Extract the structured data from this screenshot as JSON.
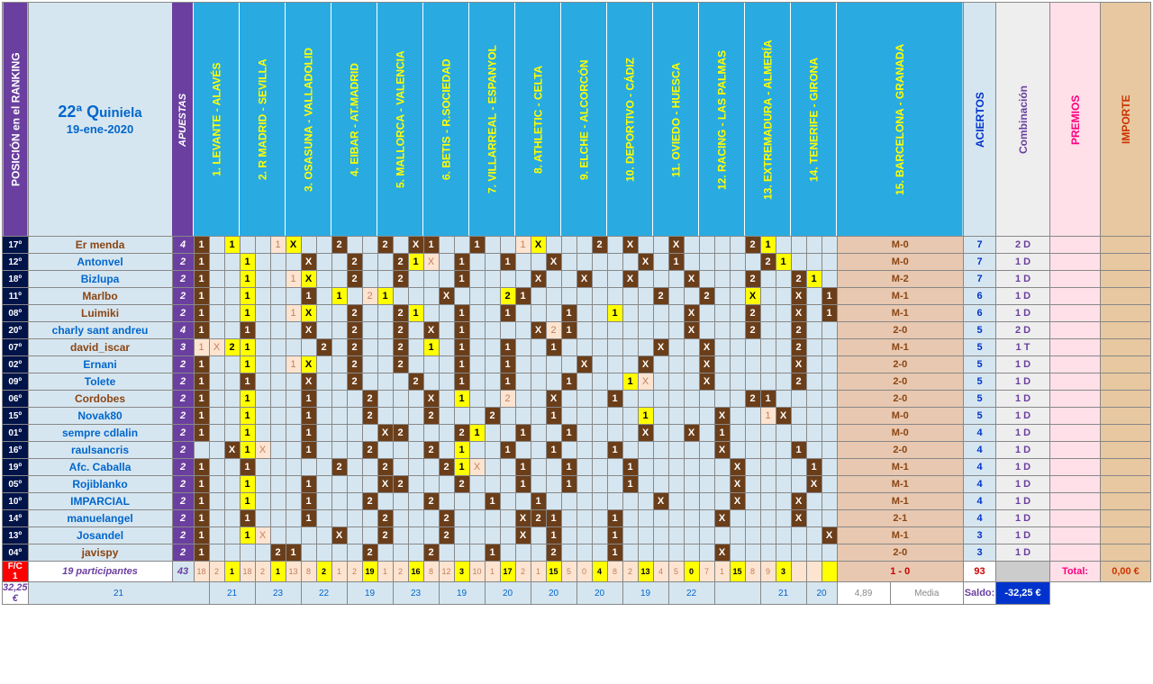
{
  "header": {
    "posicion": "POSICIÓN  en  el  RANKING",
    "title_main": "22ª Q",
    "title_rest": "uiniela",
    "date": "19-ene-2020",
    "apuestas": "APUESTAS",
    "matches": [
      "1.  LEVANTE - ALAVÉS",
      "2.  R MADRID - SEVILLA",
      "3.  OSASUNA - VALLADOLID",
      "4.  EIBAR - AT.MADRID",
      "5.  MALLORCA - VALENCIA",
      "6.  BETIS - R.SOCIEDAD",
      "7.  VILLARREAL - ESPANYOL",
      "8.  ATHLETIC - CELTA",
      "9.  ELCHE - ALCORCÓN",
      "10.  DEPORTIVO - CÁDIZ",
      "11.  OVIEDO - HUESCA",
      "12.  RACING - LAS PALMAS",
      "13.  EXTREMADURA - ALMERÍA",
      "14.  TENERIFE - GIRONA",
      "15.  BARCELONA - GRANADA"
    ],
    "aciertos": "ACIERTOS",
    "combinacion": "Combinación",
    "premios": "PREMIOS",
    "importe": "IMPORTE"
  },
  "rows": [
    {
      "pos": "17º",
      "name": "Er menda",
      "ncol": "brown",
      "ap": "4",
      "cells": [
        "b1",
        "",
        "y1",
        "",
        "",
        "p1",
        "yX",
        "",
        "",
        "b2",
        "",
        "",
        "b2",
        "",
        "bX",
        "b1",
        "",
        "",
        "b1",
        "",
        "",
        "p1",
        "yX",
        "",
        "",
        "",
        "b2",
        "",
        "bX",
        "",
        "",
        "bX",
        "",
        "",
        "",
        "",
        "b2",
        "y1",
        "",
        "",
        "",
        "",
        "bM-0"
      ],
      "ac": "7",
      "comb": "2 D"
    },
    {
      "pos": "12º",
      "name": "Antonvel",
      "ncol": "blue",
      "ap": "2",
      "cells": [
        "b1",
        "",
        "",
        "y1",
        "",
        "",
        "",
        "bX",
        "",
        "",
        "b2",
        "",
        "",
        "b2",
        "y1",
        "pX",
        "",
        "b1",
        "",
        "",
        "b1",
        "",
        "",
        "bX",
        "",
        "",
        "",
        "",
        "",
        "bX",
        "",
        "b1",
        "",
        "",
        "",
        "",
        "",
        "b2",
        "y1",
        "",
        "",
        "",
        "bM-0"
      ],
      "ac": "7",
      "comb": "1 D"
    },
    {
      "pos": "18º",
      "name": "Bizlupa",
      "ncol": "blue",
      "ap": "2",
      "cells": [
        "b1",
        "",
        "",
        "y1",
        "",
        "",
        "p1",
        "yX",
        "",
        "",
        "b2",
        "",
        "",
        "b2",
        "",
        "",
        "",
        "b1",
        "",
        "",
        "",
        "",
        "bX",
        "",
        "",
        "bX",
        "",
        "",
        "bX",
        "",
        "",
        "",
        "bX",
        "",
        "",
        "",
        "b2",
        "",
        "",
        "b2",
        "y1",
        "",
        "bM-2"
      ],
      "ac": "7",
      "comb": "1 D"
    },
    {
      "pos": "11º",
      "name": "Marlbo",
      "ncol": "brown",
      "ap": "2",
      "cells": [
        "b1",
        "",
        "",
        "y1",
        "",
        "",
        "",
        "b1",
        "",
        "y1",
        "",
        "p2",
        "y1",
        "",
        "",
        "",
        "bX",
        "",
        "",
        "",
        "y2",
        "b1",
        "",
        "",
        "",
        "",
        "",
        "",
        "",
        "",
        "b2",
        "",
        "",
        "b2",
        "",
        "",
        "yX",
        "",
        "",
        "bX",
        "",
        "b1",
        "",
        "",
        "",
        "bM-1"
      ],
      "ac": "6",
      "comb": "1 D"
    },
    {
      "pos": "08º",
      "name": "Luimiki",
      "ncol": "brown",
      "ap": "2",
      "cells": [
        "b1",
        "",
        "",
        "y1",
        "",
        "",
        "p1",
        "yX",
        "",
        "",
        "b2",
        "",
        "",
        "b2",
        "y1",
        "",
        "",
        "b1",
        "",
        "",
        "b1",
        "",
        "",
        "",
        "b1",
        "",
        "",
        "y1",
        "",
        "",
        "",
        "",
        "bX",
        "",
        "",
        "",
        "b2",
        "",
        "",
        "bX",
        "",
        "b1",
        "",
        "",
        "",
        "bM-1"
      ],
      "ac": "6",
      "comb": "1 D"
    },
    {
      "pos": "20º",
      "name": "charly sant andreu",
      "ncol": "blue",
      "ap": "4",
      "cells": [
        "b1",
        "",
        "",
        "b1",
        "",
        "",
        "",
        "bX",
        "",
        "",
        "b2",
        "",
        "",
        "b2",
        "",
        "bX",
        "",
        "b1",
        "",
        "",
        "",
        "",
        "bX",
        "p2",
        "b1",
        "",
        "",
        "",
        "",
        "",
        "",
        "",
        "bX",
        "",
        "",
        "",
        "b2",
        "",
        "",
        "b2",
        "",
        "",
        "bX",
        "b2",
        "b2-0"
      ],
      "ac": "5",
      "comb": "2 D"
    },
    {
      "pos": "07º",
      "name": "david_iscar",
      "ncol": "brown",
      "ap": "3",
      "cells": [
        "p1",
        "pX",
        "y2",
        "y1",
        "",
        "",
        "",
        "",
        "b2",
        "",
        "b2",
        "",
        "",
        "b2",
        "",
        "y1",
        "",
        "b1",
        "",
        "",
        "b1",
        "",
        "",
        "b1",
        "",
        "",
        "",
        "",
        "",
        "",
        "bX",
        "",
        "",
        "bX",
        "",
        "",
        "",
        "",
        "",
        "b2",
        "",
        "",
        "bX",
        "",
        "bM-1"
      ],
      "ac": "5",
      "comb": "1 T"
    },
    {
      "pos": "02º",
      "name": "Ernani",
      "ncol": "blue",
      "ap": "2",
      "cells": [
        "b1",
        "",
        "",
        "y1",
        "",
        "",
        "p1",
        "yX",
        "",
        "",
        "b2",
        "",
        "",
        "b2",
        "",
        "",
        "",
        "b1",
        "",
        "",
        "b1",
        "",
        "",
        "",
        "",
        "bX",
        "",
        "",
        "",
        "bX",
        "",
        "",
        "",
        "bX",
        "",
        "",
        "",
        "",
        "",
        "bX",
        "",
        "",
        "b2",
        "b2-0"
      ],
      "ac": "5",
      "comb": "1 D"
    },
    {
      "pos": "09º",
      "name": "Tolete",
      "ncol": "blue",
      "ap": "2",
      "cells": [
        "b1",
        "",
        "",
        "b1",
        "",
        "",
        "",
        "bX",
        "",
        "",
        "b2",
        "",
        "",
        "",
        "b2",
        "",
        "",
        "b1",
        "",
        "",
        "b1",
        "",
        "",
        "",
        "b1",
        "",
        "",
        "",
        "y1",
        "pX",
        "",
        "",
        "",
        "bX",
        "",
        "",
        "",
        "",
        "",
        "b2",
        "",
        "",
        "bX",
        "",
        "b2-0"
      ],
      "ac": "5",
      "comb": "1 D"
    },
    {
      "pos": "06º",
      "name": "Cordobes",
      "ncol": "brown",
      "ap": "2",
      "cells": [
        "b1",
        "",
        "",
        "y1",
        "",
        "",
        "",
        "b1",
        "",
        "",
        "",
        "b2",
        "",
        "",
        "",
        "bX",
        "",
        "y1",
        "",
        "",
        "p2",
        "",
        "",
        "bX",
        "",
        "",
        "",
        "b1",
        "",
        "",
        "",
        "",
        "",
        "",
        "",
        "",
        "b2",
        "b1",
        "",
        "",
        "",
        "",
        "b2",
        "y1",
        "",
        "",
        "",
        "",
        "b2-0"
      ],
      "ac": "5",
      "comb": "1 D"
    },
    {
      "pos": "15º",
      "name": "Novak80",
      "ncol": "blue",
      "ap": "2",
      "cells": [
        "b1",
        "",
        "",
        "y1",
        "",
        "",
        "",
        "b1",
        "",
        "",
        "",
        "b2",
        "",
        "",
        "",
        "b2",
        "",
        "",
        "",
        "b2",
        "",
        "",
        "",
        "b1",
        "",
        "",
        "",
        "",
        "",
        "y1",
        "",
        "",
        "",
        "",
        "bX",
        "",
        "",
        "p1",
        "bX",
        "",
        "",
        "",
        "",
        "b2",
        "",
        "",
        "bX",
        "",
        "bM-0"
      ],
      "ac": "5",
      "comb": "1 D"
    },
    {
      "pos": "01º",
      "name": "sempre cdlalin",
      "ncol": "blue",
      "ap": "2",
      "cells": [
        "b1",
        "",
        "",
        "y1",
        "",
        "",
        "",
        "b1",
        "",
        "",
        "",
        "",
        "bX",
        "b2",
        "",
        "",
        "",
        "b2",
        "y1",
        "",
        "",
        "b1",
        "",
        "",
        "b1",
        "",
        "",
        "",
        "",
        "bX",
        "",
        "",
        "bX",
        "",
        "b1",
        "",
        "",
        "",
        "",
        "",
        "",
        "",
        "",
        "bX",
        "",
        "",
        "bX",
        "",
        "bM-0"
      ],
      "ac": "4",
      "comb": "1 D"
    },
    {
      "pos": "16º",
      "name": "raulsancris",
      "ncol": "blue",
      "ap": "2",
      "cells": [
        "",
        "",
        "bX",
        "y1",
        "pX",
        "",
        "",
        "b1",
        "",
        "",
        "",
        "b2",
        "",
        "",
        "",
        "b2",
        "",
        "y1",
        "",
        "",
        "b1",
        "",
        "",
        "b1",
        "",
        "",
        "",
        "b1",
        "",
        "",
        "",
        "",
        "",
        "",
        "bX",
        "",
        "",
        "",
        "",
        "b1",
        "",
        "",
        "",
        "",
        "b2",
        "",
        "",
        "b2",
        "",
        "",
        "bX",
        "b2-0"
      ],
      "ac": "4",
      "comb": "1 D"
    },
    {
      "pos": "19º",
      "name": "Afc. Caballa",
      "ncol": "blue",
      "ap": "2",
      "cells": [
        "b1",
        "",
        "",
        "b1",
        "",
        "",
        "",
        "",
        "",
        "b2",
        "",
        "",
        "b2",
        "",
        "",
        "",
        "b2",
        "y1",
        "pX",
        "",
        "",
        "b1",
        "",
        "",
        "b1",
        "",
        "",
        "",
        "b1",
        "",
        "",
        "",
        "",
        "",
        "",
        "bX",
        "",
        "",
        "",
        "",
        "b1",
        "",
        "",
        "",
        "",
        "b2",
        "y1",
        "",
        "",
        "",
        "",
        "bX",
        "bM-1"
      ],
      "ac": "4",
      "comb": "1 D"
    },
    {
      "pos": "05º",
      "name": "Rojiblanko",
      "ncol": "blue",
      "ap": "2",
      "cells": [
        "b1",
        "",
        "",
        "y1",
        "",
        "",
        "",
        "b1",
        "",
        "",
        "",
        "",
        "bX",
        "b2",
        "",
        "",
        "",
        "b2",
        "",
        "",
        "",
        "b1",
        "",
        "",
        "b1",
        "",
        "",
        "",
        "b1",
        "",
        "",
        "",
        "",
        "",
        "",
        "bX",
        "",
        "",
        "",
        "",
        "bX",
        "",
        "",
        "",
        "bX",
        "",
        "",
        "",
        "",
        "bX",
        "",
        "",
        "bX",
        "",
        "bM-1"
      ],
      "ac": "4",
      "comb": "1 D"
    },
    {
      "pos": "10º",
      "name": "IMPARCIAL",
      "ncol": "blue",
      "ap": "2",
      "cells": [
        "b1",
        "",
        "",
        "y1",
        "",
        "",
        "",
        "b1",
        "",
        "",
        "",
        "b2",
        "",
        "",
        "",
        "b2",
        "",
        "",
        "",
        "b1",
        "",
        "",
        "b1",
        "",
        "",
        "",
        "",
        "",
        "",
        "",
        "bX",
        "",
        "",
        "",
        "",
        "bX",
        "",
        "",
        "",
        "bX",
        "",
        "",
        "pX",
        "b2",
        "",
        "",
        "",
        "",
        "",
        "bX",
        "bM-1"
      ],
      "ac": "4",
      "comb": "1 D"
    },
    {
      "pos": "14º",
      "name": "manuelangel",
      "ncol": "blue",
      "ap": "2",
      "cells": [
        "b1",
        "",
        "",
        "b1",
        "",
        "",
        "",
        "b1",
        "",
        "",
        "",
        "",
        "b2",
        "",
        "",
        "",
        "b2",
        "",
        "",
        "",
        "",
        "bX",
        "b2",
        "b1",
        "",
        "",
        "",
        "b1",
        "",
        "",
        "",
        "",
        "",
        "",
        "bX",
        "",
        "",
        "",
        "",
        "bX",
        "",
        "",
        "",
        "b2",
        "",
        "",
        "b2",
        "y1",
        "",
        "",
        "",
        "",
        "b2-1"
      ],
      "ac": "4",
      "comb": "1 D"
    },
    {
      "pos": "13º",
      "name": "Josandel",
      "ncol": "blue",
      "ap": "2",
      "cells": [
        "b1",
        "",
        "",
        "y1",
        "pX",
        "",
        "",
        "",
        "",
        "bX",
        "",
        "",
        "b2",
        "",
        "",
        "",
        "b2",
        "",
        "",
        "",
        "",
        "bX",
        "",
        "b1",
        "",
        "",
        "",
        "b1",
        "",
        "",
        "",
        "",
        "",
        "",
        "",
        "",
        "",
        "",
        "",
        "",
        "",
        "bX",
        "",
        "",
        "bX",
        "",
        "",
        "",
        "",
        "",
        "",
        "",
        "",
        "",
        "bX",
        "",
        "bM-1"
      ],
      "ac": "3",
      "comb": "1 D"
    },
    {
      "pos": "04º",
      "name": "javispy",
      "ncol": "brown",
      "ap": "2",
      "cells": [
        "b1",
        "",
        "",
        "",
        "",
        "b2",
        "b1",
        "",
        "",
        "",
        "",
        "b2",
        "",
        "",
        "",
        "b2",
        "",
        "",
        "",
        "b1",
        "",
        "",
        "",
        "b2",
        "",
        "",
        "",
        "b1",
        "",
        "",
        "",
        "",
        "",
        "",
        "bX",
        "",
        "",
        "",
        "",
        "",
        "",
        "",
        "",
        "",
        "bX",
        "",
        "",
        "",
        "",
        "",
        "bX",
        "",
        "bX",
        "b2-0"
      ],
      "ac": "3",
      "comb": "1 D"
    }
  ],
  "footer": {
    "fc": "F/C",
    "one": "1",
    "participantes": "19 participantes",
    "euro": "32,25 €",
    "ap_total": "43",
    "counts_top": [
      "18",
      "2",
      "1",
      "18",
      "2",
      "1",
      "13",
      "8",
      "2",
      "1",
      "2",
      "19",
      "1",
      "2",
      "16",
      "8",
      "12",
      "3",
      "10",
      "1",
      "17",
      "2",
      "1",
      "15",
      "5",
      "0",
      "4",
      "8",
      "2",
      "13",
      "4",
      "5",
      "0",
      "7",
      "1",
      "15",
      "8",
      "9",
      "3"
    ],
    "counts_bot": [
      "21",
      "21",
      "23",
      "22",
      "19",
      "23",
      "19",
      "20",
      "20",
      "20",
      "19",
      "22",
      "",
      "21",
      "20"
    ],
    "result_red": "1 - 0",
    "ac93": "93",
    "ac_media": "4,89",
    "media": "Media",
    "total_lbl": "Total:",
    "total_val": "0,00 €",
    "saldo_lbl": "Saldo:",
    "saldo_val": "-32,25 €"
  }
}
